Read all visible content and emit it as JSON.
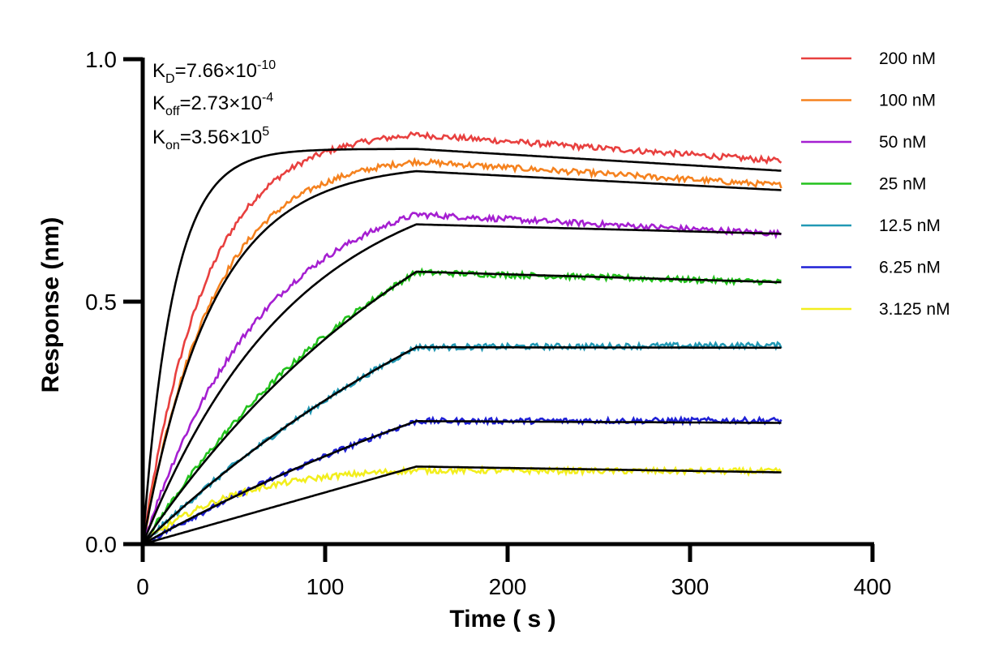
{
  "chart_data": {
    "type": "line",
    "xlabel": "Time ( s )",
    "ylabel": "Response (nm)",
    "xlim": [
      0,
      400
    ],
    "ylim": [
      0,
      1.0
    ],
    "x_ticks": [
      0,
      100,
      200,
      300,
      400
    ],
    "x_tick_labels": [
      "0",
      "100",
      "200",
      "300",
      "400"
    ],
    "y_ticks": [
      0,
      0.5,
      1.0
    ],
    "y_tick_labels": [
      "0.0",
      "0.5",
      "1.0"
    ],
    "grid": false,
    "legend_position": "right",
    "association_end_s": 150,
    "dissociation_end_s": 350,
    "annotations": {
      "kd": {
        "main": "K",
        "sub": "D",
        "text": "=7.66×10",
        "sup": "-10"
      },
      "koff": {
        "main": "K",
        "sub": "off",
        "text": "=2.73×10",
        "sup": "-4"
      },
      "kon": {
        "main": "K",
        "sub": "on",
        "text": "=3.56×10",
        "sup": "5"
      }
    },
    "series": [
      {
        "name": "200 nM",
        "color": "#e8403f",
        "plateau": 0.855,
        "k_obs": 0.029,
        "fit_plateau": 0.815,
        "fit_k_obs": 0.06,
        "end_response": 0.79,
        "fit_end_response": 0.77
      },
      {
        "name": "100 nM",
        "color": "#f5821f",
        "plateau": 0.805,
        "k_obs": 0.026,
        "fit_plateau": 0.785,
        "fit_k_obs": 0.026,
        "end_response": 0.74,
        "fit_end_response": 0.73
      },
      {
        "name": "50 nM",
        "color": "#a51fd1",
        "plateau": 0.76,
        "k_obs": 0.015,
        "fit_plateau": 0.79,
        "fit_k_obs": 0.012,
        "end_response": 0.64,
        "fit_end_response": 0.64
      },
      {
        "name": "25 nM",
        "color": "#22c21c",
        "plateau": 0.9,
        "k_obs": 0.0065,
        "fit_plateau": 1.0,
        "fit_k_obs": 0.0055,
        "end_response": 0.54,
        "fit_end_response": 0.54
      },
      {
        "name": "12.5 nM",
        "color": "#2299b5",
        "plateau": 0.9,
        "k_obs": 0.004,
        "fit_plateau": 0.9,
        "fit_k_obs": 0.004,
        "end_response": 0.41,
        "fit_end_response": 0.405
      },
      {
        "name": "6.25 nM",
        "color": "#1f20d6",
        "plateau": 0.7,
        "k_obs": 0.003,
        "fit_plateau": 0.7,
        "fit_k_obs": 0.003,
        "end_response": 0.255,
        "fit_end_response": 0.25
      },
      {
        "name": "3.125 nM",
        "color": "#f2ee1e",
        "plateau": 0.16,
        "k_obs": 0.02,
        "fit_plateau": 0.16,
        "fit_k_obs": 0.0,
        "end_response": 0.15,
        "fit_end_response": 0.148
      }
    ]
  }
}
